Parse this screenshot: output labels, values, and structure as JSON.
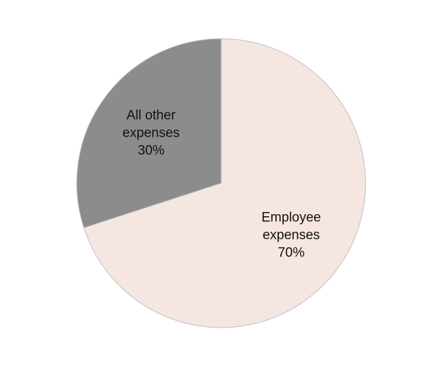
{
  "chart_data": {
    "type": "pie",
    "title": "",
    "categories": [
      "Employee expenses",
      "All other expenses"
    ],
    "values": [
      70,
      30
    ],
    "value_suffix": "%",
    "start_angle_deg": 0,
    "direction": "clockwise",
    "legend": "none",
    "data_labels": "inside",
    "colors": [
      "#f5e6e1",
      "#8c8c8c"
    ],
    "label_lines": [
      [
        "Employee",
        "expenses",
        "70%"
      ],
      [
        "All other",
        "expenses",
        "30%"
      ]
    ]
  }
}
